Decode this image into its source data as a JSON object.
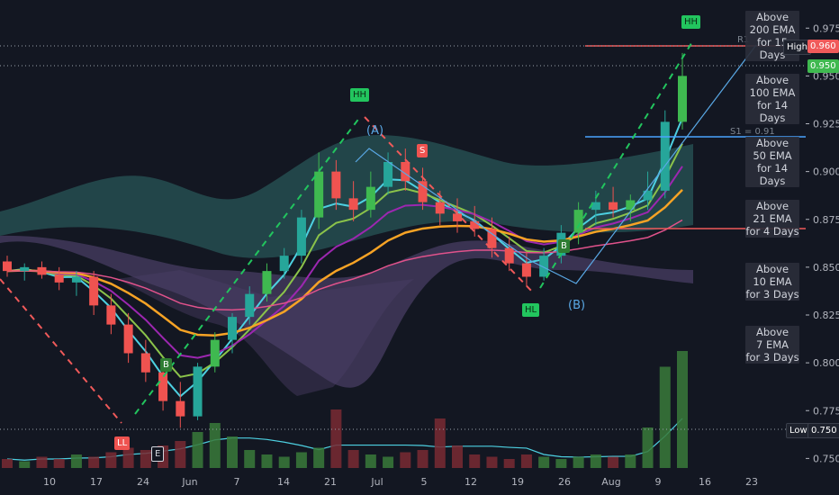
{
  "price_axis": {
    "ticks": [
      "0.975",
      "0.950",
      "0.925",
      "0.900",
      "0.875",
      "0.850",
      "0.825",
      "0.800",
      "0.775",
      "0.750"
    ],
    "tick_values": [
      0.975,
      0.95,
      0.925,
      0.9,
      0.875,
      0.85,
      0.825,
      0.8,
      0.775,
      0.75
    ],
    "high_label": "High",
    "high_value": "0.960",
    "last_value": "0.950",
    "low_label": "Low",
    "low_value": "0.750"
  },
  "time_axis": {
    "labels": [
      "10",
      "17",
      "24",
      "Jun",
      "7",
      "14",
      "21",
      "Jul",
      "5",
      "12",
      "19",
      "26",
      "Aug",
      "9",
      "16",
      "23"
    ]
  },
  "ema_panel": [
    {
      "line1": "Above",
      "line2": "200 EMA",
      "line3": "for 15 Days"
    },
    {
      "line1": "Above",
      "line2": "100 EMA",
      "line3": "for 14 Days"
    },
    {
      "line1": "Above",
      "line2": "50 EMA",
      "line3": "for 14 Days"
    },
    {
      "line1": "Above",
      "line2": "21 EMA",
      "line3": "for 4 Days"
    },
    {
      "line1": "Above",
      "line2": "10 EMA",
      "line3": "for 3 Days"
    },
    {
      "line1": "Above",
      "line2": "7 EMA",
      "line3": "for 3 Days"
    }
  ],
  "pivot_labels": {
    "hh_top": "HH",
    "hh_mid": "HH",
    "hl": "HL",
    "ll": "LL",
    "b_label": "B",
    "s_label": "S",
    "e_label": "E",
    "wave_a": "(A)",
    "wave_b": "(B)",
    "s1_label": "S1 = 0.91",
    "r1_label": "R1"
  },
  "colors": {
    "background": "#131722",
    "up_candle": "#26a69a",
    "up_candle_alt": "#3fb950",
    "down_candle": "#ef5350",
    "ema_orange": "#f7a325",
    "ema_pink": "#e0528b",
    "ema_cyan": "#4dd0e1",
    "ema_purple": "#9c27b0",
    "ema_olive": "#8bc34a",
    "high_line": "#f05a5a",
    "pivot_green": "#22c55e"
  },
  "chart_data": {
    "type": "candlestick",
    "x_labels": [
      "10",
      "17",
      "24",
      "Jun",
      "7",
      "14",
      "21",
      "Jul",
      "5",
      "12",
      "19",
      "26",
      "Aug",
      "9",
      "16",
      "23"
    ],
    "ylim": [
      0.74,
      0.98
    ],
    "high": 0.96,
    "low": 0.75,
    "last": 0.95,
    "candles": [
      {
        "o": 0.853,
        "h": 0.856,
        "l": 0.845,
        "c": 0.848
      },
      {
        "o": 0.848,
        "h": 0.852,
        "l": 0.843,
        "c": 0.85
      },
      {
        "o": 0.85,
        "h": 0.853,
        "l": 0.844,
        "c": 0.846
      },
      {
        "o": 0.846,
        "h": 0.85,
        "l": 0.838,
        "c": 0.842
      },
      {
        "o": 0.842,
        "h": 0.848,
        "l": 0.835,
        "c": 0.845
      },
      {
        "o": 0.845,
        "h": 0.848,
        "l": 0.825,
        "c": 0.83
      },
      {
        "o": 0.83,
        "h": 0.836,
        "l": 0.815,
        "c": 0.82
      },
      {
        "o": 0.82,
        "h": 0.826,
        "l": 0.8,
        "c": 0.805
      },
      {
        "o": 0.805,
        "h": 0.812,
        "l": 0.79,
        "c": 0.795
      },
      {
        "o": 0.795,
        "h": 0.8,
        "l": 0.775,
        "c": 0.78
      },
      {
        "o": 0.78,
        "h": 0.79,
        "l": 0.766,
        "c": 0.772
      },
      {
        "o": 0.772,
        "h": 0.8,
        "l": 0.77,
        "c": 0.798
      },
      {
        "o": 0.798,
        "h": 0.816,
        "l": 0.795,
        "c": 0.812
      },
      {
        "o": 0.812,
        "h": 0.826,
        "l": 0.805,
        "c": 0.824
      },
      {
        "o": 0.824,
        "h": 0.84,
        "l": 0.82,
        "c": 0.836
      },
      {
        "o": 0.836,
        "h": 0.852,
        "l": 0.832,
        "c": 0.848
      },
      {
        "o": 0.848,
        "h": 0.86,
        "l": 0.844,
        "c": 0.856
      },
      {
        "o": 0.856,
        "h": 0.88,
        "l": 0.852,
        "c": 0.876
      },
      {
        "o": 0.876,
        "h": 0.91,
        "l": 0.87,
        "c": 0.9
      },
      {
        "o": 0.9,
        "h": 0.906,
        "l": 0.88,
        "c": 0.886
      },
      {
        "o": 0.886,
        "h": 0.895,
        "l": 0.874,
        "c": 0.88
      },
      {
        "o": 0.88,
        "h": 0.9,
        "l": 0.876,
        "c": 0.892
      },
      {
        "o": 0.892,
        "h": 0.91,
        "l": 0.888,
        "c": 0.905
      },
      {
        "o": 0.905,
        "h": 0.912,
        "l": 0.89,
        "c": 0.895
      },
      {
        "o": 0.895,
        "h": 0.902,
        "l": 0.88,
        "c": 0.884
      },
      {
        "o": 0.884,
        "h": 0.89,
        "l": 0.872,
        "c": 0.878
      },
      {
        "o": 0.878,
        "h": 0.886,
        "l": 0.868,
        "c": 0.874
      },
      {
        "o": 0.874,
        "h": 0.882,
        "l": 0.866,
        "c": 0.87
      },
      {
        "o": 0.87,
        "h": 0.876,
        "l": 0.855,
        "c": 0.86
      },
      {
        "o": 0.86,
        "h": 0.866,
        "l": 0.848,
        "c": 0.852
      },
      {
        "o": 0.852,
        "h": 0.858,
        "l": 0.84,
        "c": 0.845
      },
      {
        "o": 0.845,
        "h": 0.86,
        "l": 0.843,
        "c": 0.856
      },
      {
        "o": 0.856,
        "h": 0.872,
        "l": 0.852,
        "c": 0.868
      },
      {
        "o": 0.868,
        "h": 0.884,
        "l": 0.862,
        "c": 0.88
      },
      {
        "o": 0.88,
        "h": 0.89,
        "l": 0.872,
        "c": 0.884
      },
      {
        "o": 0.884,
        "h": 0.892,
        "l": 0.876,
        "c": 0.88
      },
      {
        "o": 0.88,
        "h": 0.888,
        "l": 0.874,
        "c": 0.885
      },
      {
        "o": 0.885,
        "h": 0.9,
        "l": 0.88,
        "c": 0.89
      },
      {
        "o": 0.89,
        "h": 0.932,
        "l": 0.886,
        "c": 0.926
      },
      {
        "o": 0.926,
        "h": 0.962,
        "l": 0.922,
        "c": 0.95
      }
    ],
    "volume": [
      4,
      3,
      5,
      4,
      6,
      5,
      7,
      9,
      8,
      10,
      12,
      16,
      20,
      14,
      8,
      6,
      5,
      7,
      9,
      26,
      8,
      6,
      5,
      7,
      8,
      22,
      10,
      6,
      5,
      4,
      6,
      5,
      4,
      5,
      6,
      5,
      6,
      18,
      45,
      52
    ]
  }
}
